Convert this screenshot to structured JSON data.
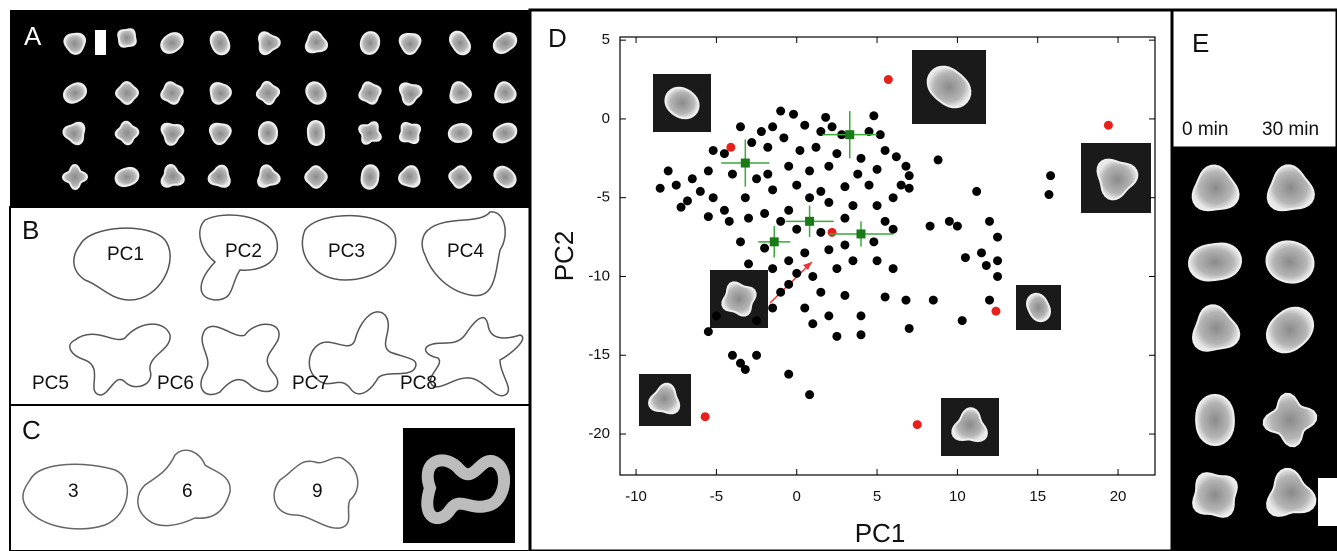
{
  "panels": {
    "a": {
      "label": "A"
    },
    "b": {
      "label": "B",
      "shapes": [
        "PC1",
        "PC2",
        "PC3",
        "PC4",
        "PC5",
        "PC6",
        "PC7",
        "PC8"
      ]
    },
    "c": {
      "label": "C",
      "shapes": [
        "3",
        "6",
        "9"
      ]
    },
    "d": {
      "label": "D"
    },
    "e": {
      "label": "E",
      "times": [
        "0 min",
        "30 min"
      ]
    }
  },
  "chart_data": {
    "type": "scatter",
    "x_label": "PC1",
    "y_label": "PC2",
    "xlim": [
      -11,
      22.3
    ],
    "ylim": [
      -22.6,
      5.2
    ],
    "xticks": [
      -10,
      -5,
      0,
      5,
      10,
      15,
      20
    ],
    "yticks": [
      -20,
      -15,
      -10,
      -5,
      0,
      5
    ],
    "series": [
      {
        "color": "#000000",
        "x": [
          -1.0,
          -0.2,
          0.5,
          -1.5,
          -2.2,
          -0.8,
          1.5,
          2.2,
          2.8,
          4.5,
          5.2,
          4.8,
          1.8,
          -3.5,
          -5.2,
          -4.5,
          -2.8,
          -1.8,
          0.2,
          1.2,
          2.5,
          4.0,
          5.5,
          6.2,
          6.8,
          5.0,
          3.8,
          2.0,
          0.8,
          -0.5,
          -1.8,
          -2.5,
          -4.0,
          -5.5,
          -6.5,
          -7.5,
          -8.5,
          -8.0,
          -6.0,
          -5.2,
          -6.8,
          -7.2,
          -4.5,
          -3.2,
          -1.5,
          0.0,
          1.5,
          3.0,
          4.5,
          6.5,
          7.0,
          6.0,
          5.0,
          3.5,
          2.0,
          0.8,
          -0.5,
          -2.0,
          -3.0,
          -4.2,
          -5.5,
          -1.0,
          0.0,
          1.5,
          3.0,
          5.5,
          6.0,
          4.8,
          3.0,
          2.0,
          0.5,
          -0.5,
          -2.0,
          -3.5,
          -3.0,
          -1.5,
          0.0,
          1.0,
          2.5,
          3.5,
          5.0,
          6.0,
          -0.5,
          -1.0,
          1.5,
          3.0,
          5.5,
          6.8,
          8.5,
          0.5,
          2.0,
          4.0,
          -1.5,
          -2.5,
          -5.0,
          -5.5,
          1.0,
          2.5,
          4.0,
          7.0,
          10.3,
          -4.0,
          -3.5,
          -2.5,
          -3.2,
          -0.5,
          0.8,
          8.3,
          9.5,
          10.0,
          12.0,
          12.5,
          11.5,
          12.5,
          11.8,
          12.0,
          12.5,
          10.5,
          15.8,
          15.7,
          11.2,
          8.8,
          7.0
        ],
        "values": [
          0.5,
          0.3,
          -0.4,
          -0.5,
          -0.8,
          -1.2,
          -0.8,
          -0.5,
          -1.0,
          -0.8,
          -1.0,
          0.2,
          0.1,
          -0.5,
          -2.0,
          -2.2,
          -1.5,
          -1.8,
          -2.0,
          -1.8,
          -2.2,
          -2.5,
          -2.0,
          -2.4,
          -3.0,
          -3.2,
          -3.5,
          -3.0,
          -3.3,
          -3.0,
          -3.5,
          -3.8,
          -3.5,
          -3.3,
          -3.8,
          -4.2,
          -4.4,
          -3.3,
          -4.6,
          -5.0,
          -5.2,
          -5.6,
          -5.8,
          -5.0,
          -4.5,
          -4.2,
          -4.6,
          -4.3,
          -4.2,
          -4.2,
          -4.4,
          -5.0,
          -5.5,
          -5.5,
          -5.3,
          -5.0,
          -5.8,
          -6.0,
          -6.3,
          -6.5,
          -6.2,
          -6.5,
          -7.0,
          -7.2,
          -6.3,
          -6.5,
          -7.0,
          -7.8,
          -8.0,
          -8.3,
          -8.5,
          -9.0,
          -8.2,
          -7.8,
          -9.2,
          -9.5,
          -9.8,
          -10.0,
          -9.5,
          -9.0,
          -9.0,
          -9.5,
          -10.5,
          -11.0,
          -11.0,
          -11.2,
          -11.3,
          -11.5,
          -11.5,
          -12.0,
          -12.5,
          -12.5,
          -12.0,
          -12.8,
          -12.5,
          -13.5,
          -13.0,
          -13.8,
          -13.7,
          -13.3,
          -12.8,
          -15.0,
          -15.5,
          -15.0,
          -15.9,
          -16.2,
          -17.5,
          -6.8,
          -6.5,
          -6.8,
          -6.5,
          -7.5,
          -8.5,
          -9.0,
          -9.3,
          -11.5,
          -10.0,
          -8.8,
          -3.6,
          -4.8,
          -4.6,
          -2.6,
          -3.6
        ]
      },
      {
        "color": "#e8201c",
        "x": [
          5.7,
          -4.1,
          19.4,
          2.2,
          12.4,
          -5.7,
          7.5
        ],
        "values": [
          2.5,
          -1.8,
          -0.4,
          -7.2,
          -12.2,
          -18.9,
          -19.4
        ]
      },
      {
        "color": "#1a7a1a",
        "error_color": "#3aa83a",
        "x": [
          -3.2,
          3.3,
          0.8,
          -1.4,
          4.0
        ],
        "values": [
          -2.8,
          -1.0,
          -6.5,
          -7.8,
          -7.3
        ],
        "xerr": [
          1.5,
          1.7,
          1.5,
          1.0,
          2.0
        ],
        "yerr": [
          1.5,
          1.5,
          1.0,
          1.0,
          0.8
        ]
      }
    ]
  }
}
